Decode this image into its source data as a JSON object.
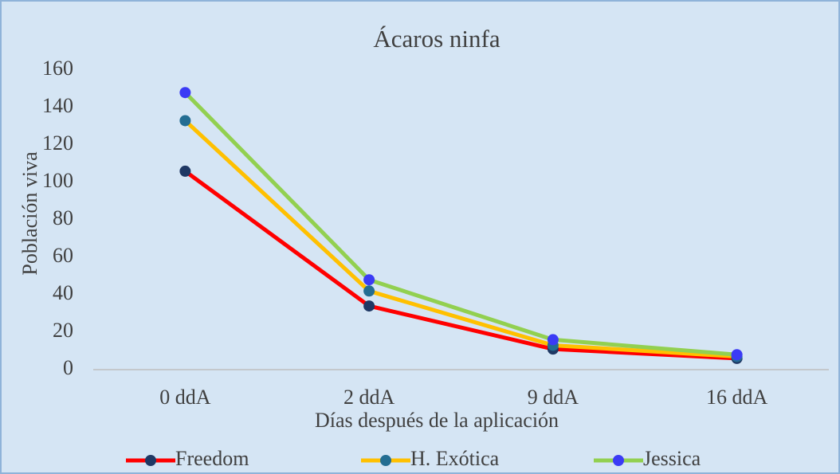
{
  "chart_data": {
    "type": "line",
    "title": "Ácaros ninfa",
    "x_label": "Días después de la aplicación",
    "y_label": "Población viva",
    "categories": [
      "0 ddA",
      "2 ddA",
      "9 ddA",
      "16 ddA"
    ],
    "series": [
      {
        "name": "Freedom",
        "color": "#ff0000",
        "marker_color": "#1f3864",
        "values": [
          106,
          34,
          11,
          6
        ]
      },
      {
        "name": "H. Exótica",
        "color": "#ffc000",
        "marker_color": "#236d92",
        "values": [
          133,
          42,
          13,
          7
        ]
      },
      {
        "name": "Jessica",
        "color": "#92d050",
        "marker_color": "#3b3bf5",
        "values": [
          148,
          48,
          16,
          8
        ]
      }
    ],
    "ylim": [
      0,
      160
    ],
    "yticks": [
      0,
      20,
      40,
      60,
      80,
      100,
      120,
      140,
      160
    ],
    "grid": false,
    "legend": "bottom"
  }
}
